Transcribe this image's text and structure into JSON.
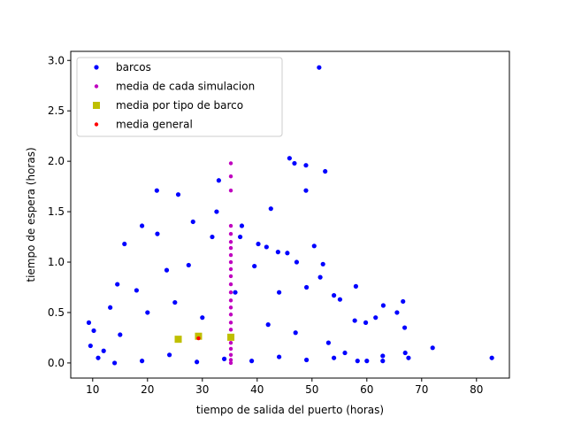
{
  "chart_data": {
    "type": "scatter",
    "title": "",
    "xlabel": "tiempo de salida del puerto (horas)",
    "ylabel": "tiempo de espera (horas)",
    "xlim": [
      6,
      86
    ],
    "ylim": [
      -0.15,
      3.09
    ],
    "xticks": [
      10,
      20,
      30,
      40,
      50,
      60,
      70,
      80
    ],
    "yticks": [
      0.0,
      0.5,
      1.0,
      1.5,
      2.0,
      2.5,
      3.0
    ],
    "xtick_labels": [
      "10",
      "20",
      "30",
      "40",
      "50",
      "60",
      "70",
      "80"
    ],
    "ytick_labels": [
      "0.0",
      "0.5",
      "1.0",
      "1.5",
      "2.0",
      "2.5",
      "3.0"
    ],
    "grid": false,
    "legend_position": "upper-left",
    "legend": [
      {
        "label": "barcos",
        "color": "#0000ff",
        "marker": "circle"
      },
      {
        "label": "media de cada simulacion",
        "color": "#bf00bf",
        "marker": "small-circle"
      },
      {
        "label": "media por tipo de barco",
        "color": "#bfbf00",
        "marker": "square"
      },
      {
        "label": "media general",
        "color": "#ff0000",
        "marker": "small-circle"
      }
    ],
    "series": [
      {
        "name": "barcos",
        "color": "#0000ff",
        "points": [
          [
            51.3,
            2.93
          ],
          [
            45.9,
            2.03
          ],
          [
            46.8,
            1.98
          ],
          [
            48.9,
            1.96
          ],
          [
            52.4,
            1.9
          ],
          [
            33.0,
            1.81
          ],
          [
            21.7,
            1.71
          ],
          [
            25.6,
            1.67
          ],
          [
            48.9,
            1.71
          ],
          [
            42.5,
            1.53
          ],
          [
            32.6,
            1.5
          ],
          [
            28.3,
            1.4
          ],
          [
            37.2,
            1.36
          ],
          [
            19.0,
            1.36
          ],
          [
            21.8,
            1.28
          ],
          [
            31.8,
            1.25
          ],
          [
            36.9,
            1.25
          ],
          [
            15.8,
            1.18
          ],
          [
            50.4,
            1.16
          ],
          [
            40.2,
            1.18
          ],
          [
            41.7,
            1.15
          ],
          [
            43.8,
            1.1
          ],
          [
            45.5,
            1.09
          ],
          [
            47.2,
            1.0
          ],
          [
            52.0,
            0.98
          ],
          [
            58.0,
            0.76
          ],
          [
            63.0,
            0.57
          ],
          [
            66.6,
            0.61
          ],
          [
            65.5,
            0.5
          ],
          [
            61.6,
            0.45
          ],
          [
            57.8,
            0.42
          ],
          [
            59.8,
            0.4
          ],
          [
            54.0,
            0.67
          ],
          [
            55.1,
            0.63
          ],
          [
            72.0,
            0.15
          ],
          [
            82.8,
            0.05
          ],
          [
            67.6,
            0.05
          ],
          [
            62.9,
            0.07
          ],
          [
            62.9,
            0.02
          ],
          [
            60.0,
            0.02
          ],
          [
            58.3,
            0.02
          ],
          [
            67.0,
            0.1
          ],
          [
            66.9,
            0.35
          ],
          [
            49.0,
            0.75
          ],
          [
            51.5,
            0.85
          ],
          [
            44.0,
            0.7
          ],
          [
            39.5,
            0.96
          ],
          [
            27.5,
            0.97
          ],
          [
            23.5,
            0.92
          ],
          [
            14.5,
            0.78
          ],
          [
            9.3,
            0.4
          ],
          [
            10.2,
            0.32
          ],
          [
            9.6,
            0.17
          ],
          [
            13.2,
            0.55
          ],
          [
            18.0,
            0.72
          ],
          [
            12.0,
            0.12
          ],
          [
            15.0,
            0.28
          ],
          [
            20.0,
            0.5
          ],
          [
            25.0,
            0.6
          ],
          [
            30.0,
            0.45
          ],
          [
            36.0,
            0.7
          ],
          [
            42.0,
            0.38
          ],
          [
            47.0,
            0.3
          ],
          [
            53.0,
            0.2
          ],
          [
            56.0,
            0.1
          ],
          [
            11.0,
            0.05
          ],
          [
            14.0,
            0.0
          ],
          [
            19.0,
            0.02
          ],
          [
            24.0,
            0.08
          ],
          [
            29.0,
            0.01
          ],
          [
            34.0,
            0.04
          ],
          [
            39.0,
            0.02
          ],
          [
            44.0,
            0.06
          ],
          [
            49.0,
            0.03
          ],
          [
            54.0,
            0.05
          ]
        ]
      },
      {
        "name": "media de cada simulacion",
        "color": "#bf00bf",
        "points": [
          [
            35.2,
            1.98
          ],
          [
            35.2,
            1.85
          ],
          [
            35.2,
            1.71
          ],
          [
            35.2,
            1.36
          ],
          [
            35.2,
            1.28
          ],
          [
            35.2,
            1.2
          ],
          [
            35.2,
            1.14
          ],
          [
            35.2,
            1.07
          ],
          [
            35.2,
            1.0
          ],
          [
            35.2,
            0.93
          ],
          [
            35.2,
            0.86
          ],
          [
            35.2,
            0.78
          ],
          [
            35.2,
            0.7
          ],
          [
            35.2,
            0.62
          ],
          [
            35.2,
            0.55
          ],
          [
            35.2,
            0.48
          ],
          [
            35.2,
            0.4
          ],
          [
            35.2,
            0.33
          ],
          [
            35.2,
            0.26
          ],
          [
            35.2,
            0.2
          ],
          [
            35.2,
            0.14
          ],
          [
            35.2,
            0.08
          ],
          [
            35.2,
            0.03
          ],
          [
            35.2,
            0.0
          ]
        ]
      },
      {
        "name": "media por tipo de barco",
        "color": "#bfbf00",
        "points": [
          [
            25.6,
            0.235
          ],
          [
            29.3,
            0.265
          ],
          [
            35.2,
            0.255
          ]
        ]
      },
      {
        "name": "media general",
        "color": "#ff0000",
        "points": [
          [
            29.3,
            0.245
          ]
        ]
      }
    ]
  }
}
